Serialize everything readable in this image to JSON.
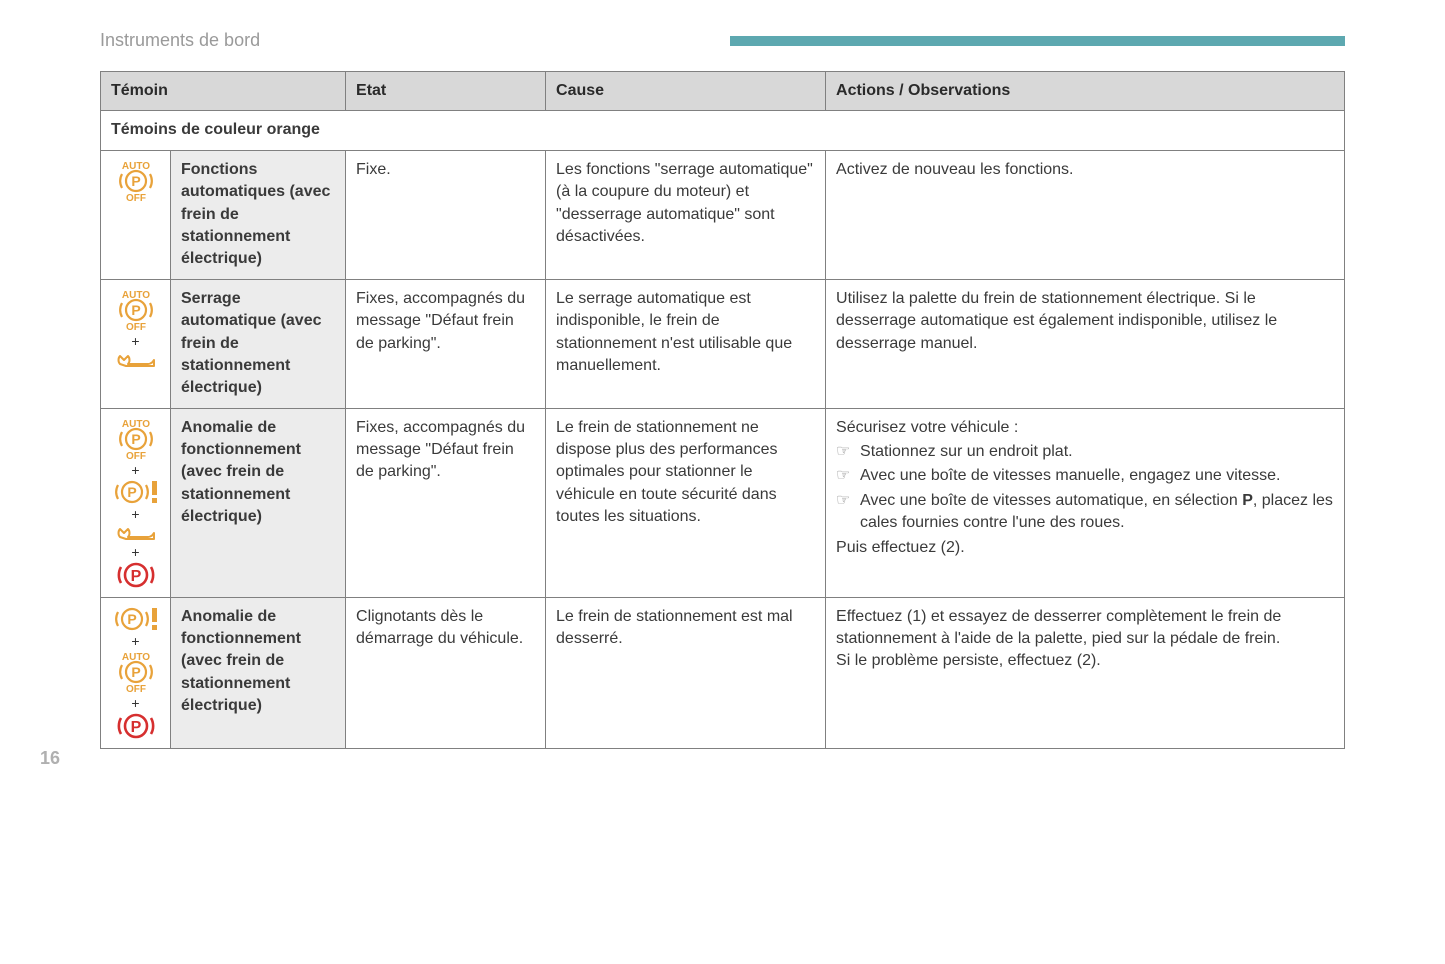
{
  "header": {
    "title": "Instruments de bord"
  },
  "page_number": "16",
  "colors": {
    "orange": "#e8a23a",
    "red": "#d62f2f",
    "header_bar": "#5da8b0",
    "header_bg": "#d8d8d8",
    "label_bg": "#ececec",
    "border": "#808080",
    "text": "#3a3a3a"
  },
  "table": {
    "columns": {
      "temoin": "Témoin",
      "etat": "Etat",
      "cause": "Cause",
      "actions": "Actions / Observations"
    },
    "section_title": "Témoins de couleur orange",
    "rows": [
      {
        "icons": [
          "auto_p_off"
        ],
        "label": "Fonctions automatiques (avec frein de stationnement électrique)",
        "etat": "Fixe.",
        "cause": "Les fonctions \"serrage automatique\" (à la coupure du moteur) et \"desserrage automatique\" sont désactivées.",
        "actions_plain": "Activez de nouveau les fonctions."
      },
      {
        "icons": [
          "auto_p_off",
          "plus",
          "wrench"
        ],
        "label": "Serrage automatique (avec frein de stationnement électrique)",
        "etat": "Fixes, accompagnés du message \"Défaut frein de parking\".",
        "cause": "Le serrage automatique est indisponible, le frein de stationnement n'est utilisable que manuellement.",
        "actions_plain": "Utilisez la palette du frein de stationnement électrique. Si le desserrage automatique est également indisponible, utilisez le desserrage manuel."
      },
      {
        "icons": [
          "auto_p_off",
          "plus",
          "p_excl",
          "plus",
          "wrench",
          "plus",
          "p_red"
        ],
        "label": "Anomalie de fonctionnement (avec frein de stationnement électrique)",
        "etat": "Fixes, accompagnés du message \"Défaut frein de parking\".",
        "cause": "Le frein de stationnement ne dispose plus des performances optimales pour stationner le véhicule en toute sécurité dans toutes les situations.",
        "actions_intro": "Sécurisez votre véhicule :",
        "actions_bullets": [
          "Stationnez sur un endroit plat.",
          "Avec une boîte de vitesses manuelle, engagez une vitesse.",
          "Avec une boîte de vitesses automatique, en sélection <b>P</b>, placez les cales fournies contre l'une des roues."
        ],
        "actions_outro": "Puis effectuez (2)."
      },
      {
        "icons": [
          "p_excl",
          "plus",
          "auto_p_off",
          "plus",
          "p_red"
        ],
        "label": "Anomalie de fonctionnement (avec frein de stationnement électrique)",
        "etat": "Clignotants dès le démarrage du véhicule.",
        "cause": "Le frein de stationnement est mal desserré.",
        "actions_plain": "Effectuez (1) et essayez de desserrer complètement le frein de stationnement à l'aide de la palette, pied sur la pédale de frein.\nSi le problème persiste, effectuez (2)."
      }
    ]
  }
}
